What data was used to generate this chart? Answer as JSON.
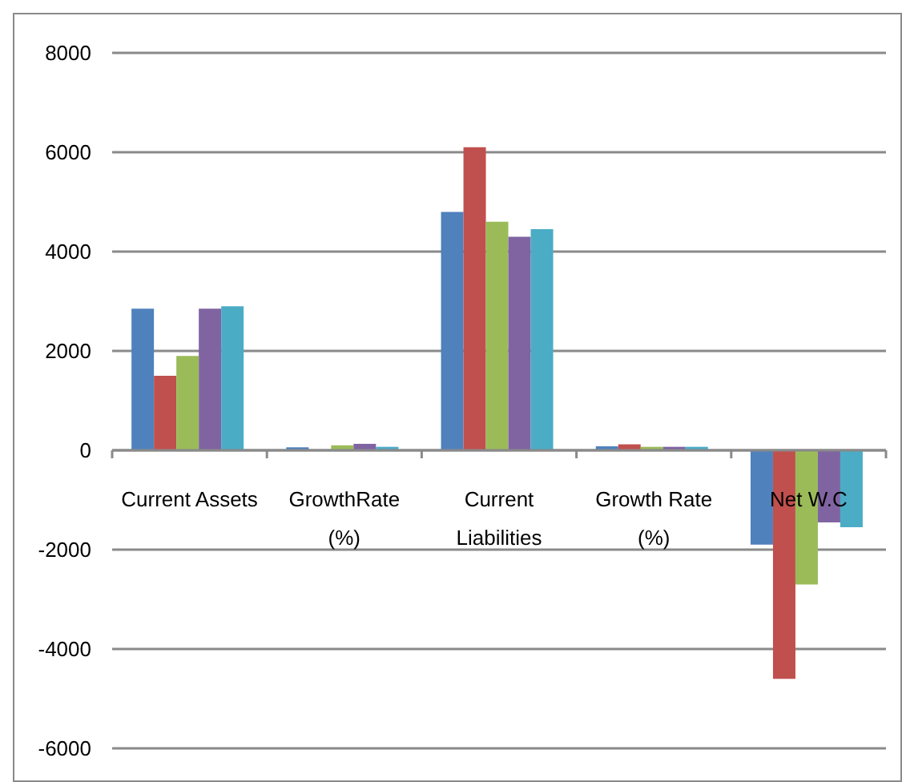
{
  "chart_data": {
    "type": "bar",
    "categories": [
      "Current Assets",
      "GrowthRate (%)",
      "Current Liabilities",
      "Growth Rate (%)",
      "Net W.C"
    ],
    "series": [
      {
        "color": "#4f81bd",
        "values": [
          2850,
          60,
          4800,
          80,
          -1900
        ]
      },
      {
        "color": "#c0504d",
        "values": [
          1500,
          0,
          6100,
          120,
          -4600
        ]
      },
      {
        "color": "#9bbb59",
        "values": [
          1900,
          100,
          4600,
          70,
          -2700
        ]
      },
      {
        "color": "#8064a2",
        "values": [
          2850,
          130,
          4300,
          70,
          -1450
        ]
      },
      {
        "color": "#4bacc6",
        "values": [
          2900,
          70,
          4450,
          70,
          -1550
        ]
      }
    ],
    "ylim": [
      -6000,
      8000
    ],
    "yticks": [
      -6000,
      -4000,
      -2000,
      0,
      2000,
      4000,
      6000,
      8000
    ],
    "grid": "y"
  }
}
